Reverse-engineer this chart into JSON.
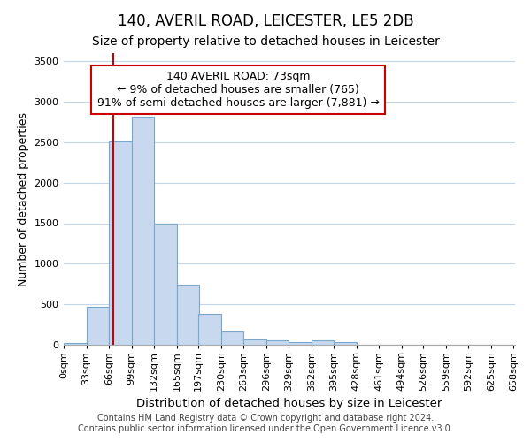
{
  "title": "140, AVERIL ROAD, LEICESTER, LE5 2DB",
  "subtitle": "Size of property relative to detached houses in Leicester",
  "xlabel": "Distribution of detached houses by size in Leicester",
  "ylabel": "Number of detached properties",
  "footer_line1": "Contains HM Land Registry data © Crown copyright and database right 2024.",
  "footer_line2": "Contains public sector information licensed under the Open Government Licence v3.0.",
  "annotation_title": "140 AVERIL ROAD: 73sqm",
  "annotation_line2": "← 9% of detached houses are smaller (765)",
  "annotation_line3": "91% of semi-detached houses are larger (7,881) →",
  "property_size_sqm": 73,
  "bar_left_edges": [
    0,
    33,
    66,
    99,
    132,
    165,
    197,
    230,
    263,
    296,
    329,
    362,
    395,
    428,
    461,
    494,
    526,
    559,
    592,
    625
  ],
  "bar_heights": [
    20,
    470,
    2510,
    2820,
    1500,
    740,
    380,
    160,
    70,
    55,
    35,
    55,
    30,
    5,
    5,
    5,
    5,
    0,
    0,
    0
  ],
  "bin_width": 33,
  "bar_color": "#c8d8ee",
  "bar_edge_color": "#7aa8cc",
  "marker_color": "#cc0000",
  "background_color": "#ffffff",
  "plot_bg_color": "#ffffff",
  "grid_color": "#c5d5e8",
  "ylim": [
    0,
    3600
  ],
  "yticks": [
    0,
    500,
    1000,
    1500,
    2000,
    2500,
    3000,
    3500
  ],
  "x_tick_labels": [
    "0sqm",
    "33sqm",
    "66sqm",
    "99sqm",
    "132sqm",
    "165sqm",
    "197sqm",
    "230sqm",
    "263sqm",
    "296sqm",
    "329sqm",
    "362sqm",
    "395sqm",
    "428sqm",
    "461sqm",
    "494sqm",
    "526sqm",
    "559sqm",
    "592sqm",
    "625sqm",
    "658sqm"
  ],
  "title_fontsize": 12,
  "subtitle_fontsize": 10,
  "tick_fontsize": 8,
  "ylabel_fontsize": 9,
  "xlabel_fontsize": 9.5,
  "footer_fontsize": 7,
  "annotation_fontsize": 9
}
